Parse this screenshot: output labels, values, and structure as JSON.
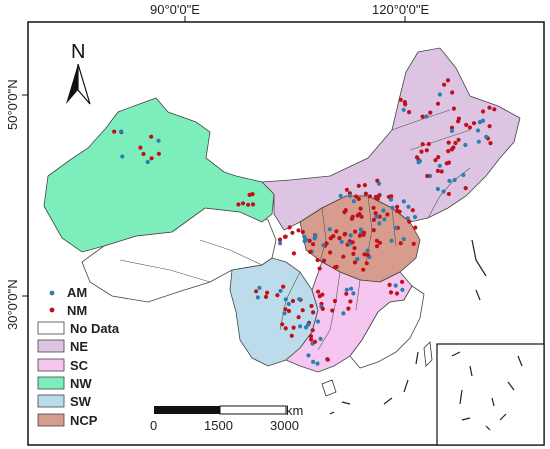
{
  "map": {
    "top_axis": {
      "lon_90": "90°0'0\"E",
      "lon_120": "120°0'0\"E"
    },
    "left_axis": {
      "lat_50": "50°0'0\"N",
      "lat_30": "30°0'0\"N"
    },
    "north_label": "N",
    "legend": {
      "am_label": "AM",
      "nm_label": "NM",
      "nodata_label": "No Data",
      "ne_label": "NE",
      "sc_label": "SC",
      "nw_label": "NW",
      "sw_label": "SW",
      "ncp_label": "NCP"
    },
    "scale": {
      "unit": "km",
      "tick0": "0",
      "tick1": "1500",
      "tick2": "3000"
    },
    "colors": {
      "ne": "#dcc4e2",
      "sc": "#f4c6f0",
      "nw": "#7eedbc",
      "sw": "#bcdcec",
      "ncp": "#d89c8e",
      "nodata": "#ffffff",
      "am": "#2a7fb0",
      "nm": "#c0101a"
    }
  }
}
